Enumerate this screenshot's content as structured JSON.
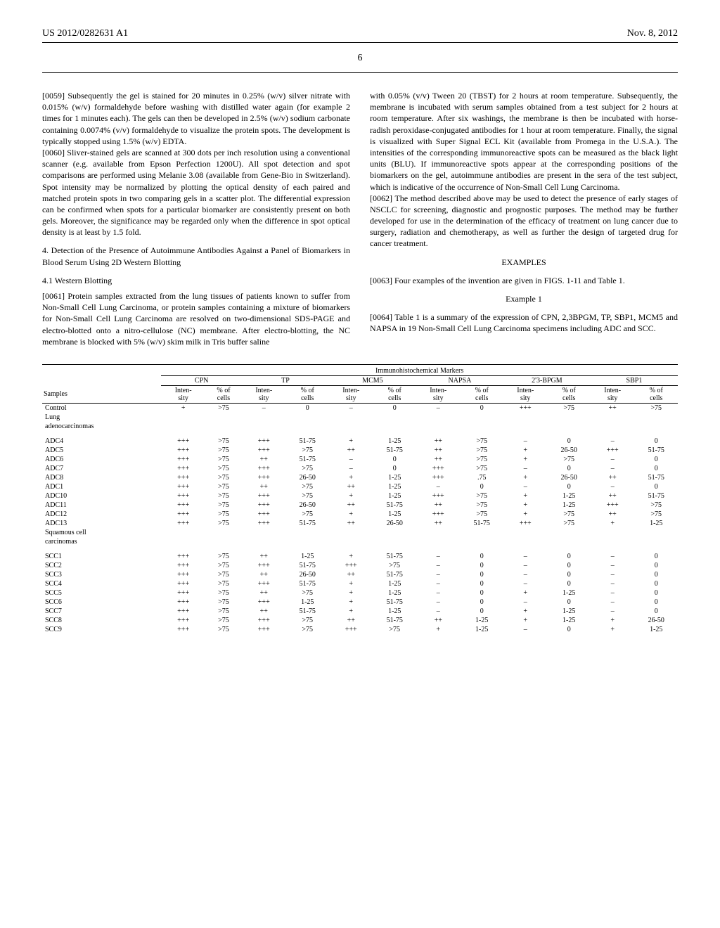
{
  "header": {
    "pub_number": "US 2012/0282631 A1",
    "pub_date": "Nov. 8, 2012"
  },
  "page_number": "6",
  "left_column": {
    "p0059": "[0059]   Subsequently the gel is stained for 20 minutes in 0.25% (w/v) silver nitrate with 0.015% (w/v) formaldehyde before washing with distilled water again (for example 2 times for 1 minutes each). The gels can then be developed in 2.5% (w/v) sodium carbonate containing 0.0074% (v/v) formaldehyde to visualize the protein spots. The development is typically stopped using 1.5% (w/v) EDTA.",
    "p0060": "[0060]   Sliver-stained gels are scanned at 300 dots per inch resolution using a conventional scanner (e.g. available from Epson Perfection 1200U). All spot detection and spot comparisons are performed using Melanie 3.08 (available from Gene-Bio in Switzerland). Spot intensity may be normalized by plotting the optical density of each paired and matched protein spots in two comparing gels in a scatter plot. The differential expression can be confirmed when spots for a particular biomarker are consistently present on both gels. Moreover, the significance may be regarded only when the difference in spot optical density is at least by 1.5 fold.",
    "section4_title": "4. Detection of the Presence of Autoimmune Antibodies Against a Panel of Biomarkers in Blood Serum Using 2D Western Blotting",
    "section41_title": "4.1 Western Blotting",
    "p0061": "[0061]   Protein samples extracted from the lung tissues of patients known to suffer from Non-Small Cell Lung Carcinoma, or protein samples containing a mixture of biomarkers for Non-Small Cell Lung Carcinoma are resolved on two-dimensional SDS-PAGE and electro-blotted onto a nitro-cellulose (NC) membrane. After electro-blotting, the NC membrane is blocked with 5% (w/v) skim milk in Tris buffer saline"
  },
  "right_column": {
    "p0061_cont": "with 0.05% (v/v) Tween 20 (TBST) for 2 hours at room temperature. Subsequently, the membrane is incubated with serum samples obtained from a test subject for 2 hours at room temperature. After six washings, the membrane is then be incubated with horse-radish peroxidase-conjugated antibodies for 1 hour at room temperature. Finally, the signal is visualized with Super Signal ECL Kit (available from Promega in the U.S.A.). The intensities of the corresponding immunoreactive spots can be measured as the black light units (BLU). If immunoreactive spots appear at the corresponding positions of the biomarkers on the gel, autoimmune antibodies are present in the sera of the test subject, which is indicative of the occurrence of Non-Small Cell Lung Carcinoma.",
    "p0062": "[0062]   The method described above may be used to detect the presence of early stages of NSCLC for screening, diagnostic and prognostic purposes. The method may be further developed for use in the determination of the efficacy of treatment on lung cancer due to surgery, radiation and chemotherapy, as well as further the design of targeted drug for cancer treatment.",
    "examples_title": "EXAMPLES",
    "p0063": "[0063]   Four examples of the invention are given in FIGS. 1-11 and Table 1.",
    "example1_title": "Example 1",
    "p0064": "[0064]   Table 1 is a summary of the expression of CPN, 2,3BPGM, TP, SBP1, MCM5 and NAPSA in 19 Non-Small Cell Lung Carcinoma specimens including ADC and SCC."
  },
  "table": {
    "super_header": "Immunohistochemical Markers",
    "markers": [
      "CPN",
      "TP",
      "MCM5",
      "NAPSA",
      "2'3-BPGM",
      "SBP1"
    ],
    "col_labels": {
      "samples": "Samples",
      "intensity": "Inten-\nsity",
      "percent": "% of\ncells"
    },
    "groups": [
      {
        "label": "Control",
        "rows": [
          {
            "sample": "Control",
            "values": [
              "+",
              ">75",
              "–",
              "0",
              "–",
              "0",
              "–",
              "0",
              "+++",
              ">75",
              "++",
              ">75"
            ]
          }
        ]
      },
      {
        "label": "Lung adenocarcinomas",
        "rows": [
          {
            "sample": "ADC4",
            "values": [
              "+++",
              ">75",
              "+++",
              "51-75",
              "+",
              "1-25",
              "++",
              ">75",
              "–",
              "0",
              "–",
              "0"
            ]
          },
          {
            "sample": "ADC5",
            "values": [
              "+++",
              ">75",
              "+++",
              ">75",
              "++",
              "51-75",
              "++",
              ">75",
              "+",
              "26-50",
              "+++",
              "51-75"
            ]
          },
          {
            "sample": "ADC6",
            "values": [
              "+++",
              ">75",
              "++",
              "51-75",
              "–",
              "0",
              "++",
              ">75",
              "+",
              ">75",
              "–",
              "0"
            ]
          },
          {
            "sample": "ADC7",
            "values": [
              "+++",
              ">75",
              "+++",
              ">75",
              "–",
              "0",
              "+++",
              ">75",
              "–",
              "0",
              "–",
              "0"
            ]
          },
          {
            "sample": "ADC8",
            "values": [
              "+++",
              ">75",
              "+++",
              "26-50",
              "+",
              "1-25",
              "+++",
              ".75",
              "+",
              "26-50",
              "++",
              "51-75"
            ]
          },
          {
            "sample": "ADC1",
            "values": [
              "+++",
              ">75",
              "++",
              ">75",
              "++",
              "1-25",
              "–",
              "0",
              "–",
              "0",
              "–",
              "0"
            ]
          },
          {
            "sample": "ADC10",
            "values": [
              "+++",
              ">75",
              "+++",
              ">75",
              "+",
              "1-25",
              "+++",
              ">75",
              "+",
              "1-25",
              "++",
              "51-75"
            ]
          },
          {
            "sample": "ADC11",
            "values": [
              "+++",
              ">75",
              "+++",
              "26-50",
              "++",
              "51-75",
              "++",
              ">75",
              "+",
              "1-25",
              "+++",
              ">75"
            ]
          },
          {
            "sample": "ADC12",
            "values": [
              "+++",
              ">75",
              "+++",
              ">75",
              "+",
              "1-25",
              "+++",
              ">75",
              "+",
              ">75",
              "++",
              ">75"
            ]
          },
          {
            "sample": "ADC13",
            "values": [
              "+++",
              ">75",
              "+++",
              "51-75",
              "++",
              "26-50",
              "++",
              "51-75",
              "+++",
              ">75",
              "+",
              "1-25"
            ]
          }
        ]
      },
      {
        "label": "Squamous cell carcinomas",
        "rows": [
          {
            "sample": "SCC1",
            "values": [
              "+++",
              ">75",
              "++",
              "1-25",
              "+",
              "51-75",
              "–",
              "0",
              "–",
              "0",
              "–",
              "0"
            ]
          },
          {
            "sample": "SCC2",
            "values": [
              "+++",
              ">75",
              "+++",
              "51-75",
              "+++",
              ">75",
              "–",
              "0",
              "–",
              "0",
              "–",
              "0"
            ]
          },
          {
            "sample": "SCC3",
            "values": [
              "+++",
              ">75",
              "++",
              "26-50",
              "++",
              "51-75",
              "–",
              "0",
              "–",
              "0",
              "–",
              "0"
            ]
          },
          {
            "sample": "SCC4",
            "values": [
              "+++",
              ">75",
              "+++",
              "51-75",
              "+",
              "1-25",
              "–",
              "0",
              "–",
              "0",
              "–",
              "0"
            ]
          },
          {
            "sample": "SCC5",
            "values": [
              "+++",
              ">75",
              "++",
              ">75",
              "+",
              "1-25",
              "–",
              "0",
              "+",
              "1-25",
              "–",
              "0"
            ]
          },
          {
            "sample": "SCC6",
            "values": [
              "+++",
              ">75",
              "+++",
              "1-25",
              "+",
              "51-75",
              "–",
              "0",
              "–",
              "0",
              "–",
              "0"
            ]
          },
          {
            "sample": "SCC7",
            "values": [
              "+++",
              ">75",
              "++",
              "51-75",
              "+",
              "1-25",
              "–",
              "0",
              "+",
              "1-25",
              "–",
              "0"
            ]
          },
          {
            "sample": "SCC8",
            "values": [
              "+++",
              ">75",
              "+++",
              ">75",
              "++",
              "51-75",
              "++",
              "1-25",
              "+",
              "1-25",
              "+",
              "26-50"
            ]
          },
          {
            "sample": "SCC9",
            "values": [
              "+++",
              ">75",
              "+++",
              ">75",
              "+++",
              ">75",
              "+",
              "1-25",
              "–",
              "0",
              "+",
              "1-25"
            ]
          }
        ]
      }
    ]
  }
}
